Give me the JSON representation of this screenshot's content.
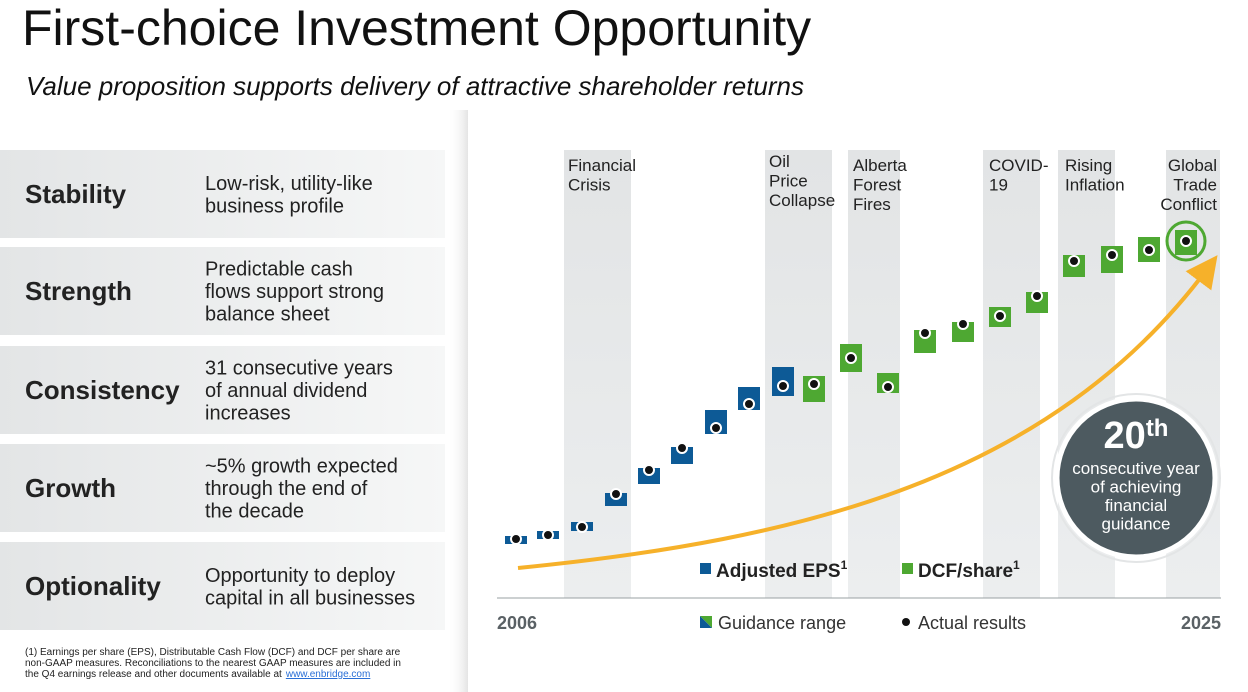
{
  "header": {
    "title": "First-choice Investment Opportunity",
    "subtitle": "Value proposition supports delivery of attractive shareholder returns"
  },
  "pillars": [
    {
      "name": "Stability",
      "lines": [
        "Low-risk, utility-like",
        "business profile"
      ]
    },
    {
      "name": "Strength",
      "lines": [
        "Predictable cash",
        "flows support strong",
        "balance sheet"
      ]
    },
    {
      "name": "Consistency",
      "lines": [
        "31 consecutive years",
        "of annual dividend",
        "increases"
      ]
    },
    {
      "name": "Growth",
      "lines": [
        "~5% growth expected",
        "through the end of",
        "the decade"
      ]
    },
    {
      "name": "Optionality",
      "lines": [
        "Opportunity to deploy",
        "capital in all businesses"
      ]
    }
  ],
  "chart": {
    "events": [
      {
        "lines": [
          "Financial",
          "Crisis"
        ]
      },
      {
        "lines": [
          "Oil",
          "Price",
          "Collapse"
        ]
      },
      {
        "lines": [
          "Alberta",
          "Forest",
          "Fires"
        ]
      },
      {
        "lines": [
          "COVID-",
          "19"
        ]
      },
      {
        "lines": [
          "Rising",
          "Inflation"
        ]
      },
      {
        "lines": [
          "Global",
          "Trade",
          "Conflict"
        ]
      }
    ],
    "x_start": "2006",
    "x_end": "2025",
    "legend": {
      "eps": "Adjusted EPS",
      "eps_note": "1",
      "dcf": "DCF/share",
      "dcf_note": "1",
      "guidance": "Guidance range",
      "actual": "Actual results"
    },
    "badge": {
      "number": "20",
      "suffix": "th",
      "lines": [
        "consecutive year",
        "of achieving",
        "financial",
        "guidance"
      ]
    }
  },
  "footnote": {
    "lines": [
      "(1) Earnings per share (EPS), Distributable Cash Flow (DCF) and DCF per share are",
      "non-GAAP measures. Reconciliations to the nearest GAAP measures are included in",
      "the Q4 earnings release and other documents available at"
    ],
    "link": "www.enbridge.com"
  }
}
